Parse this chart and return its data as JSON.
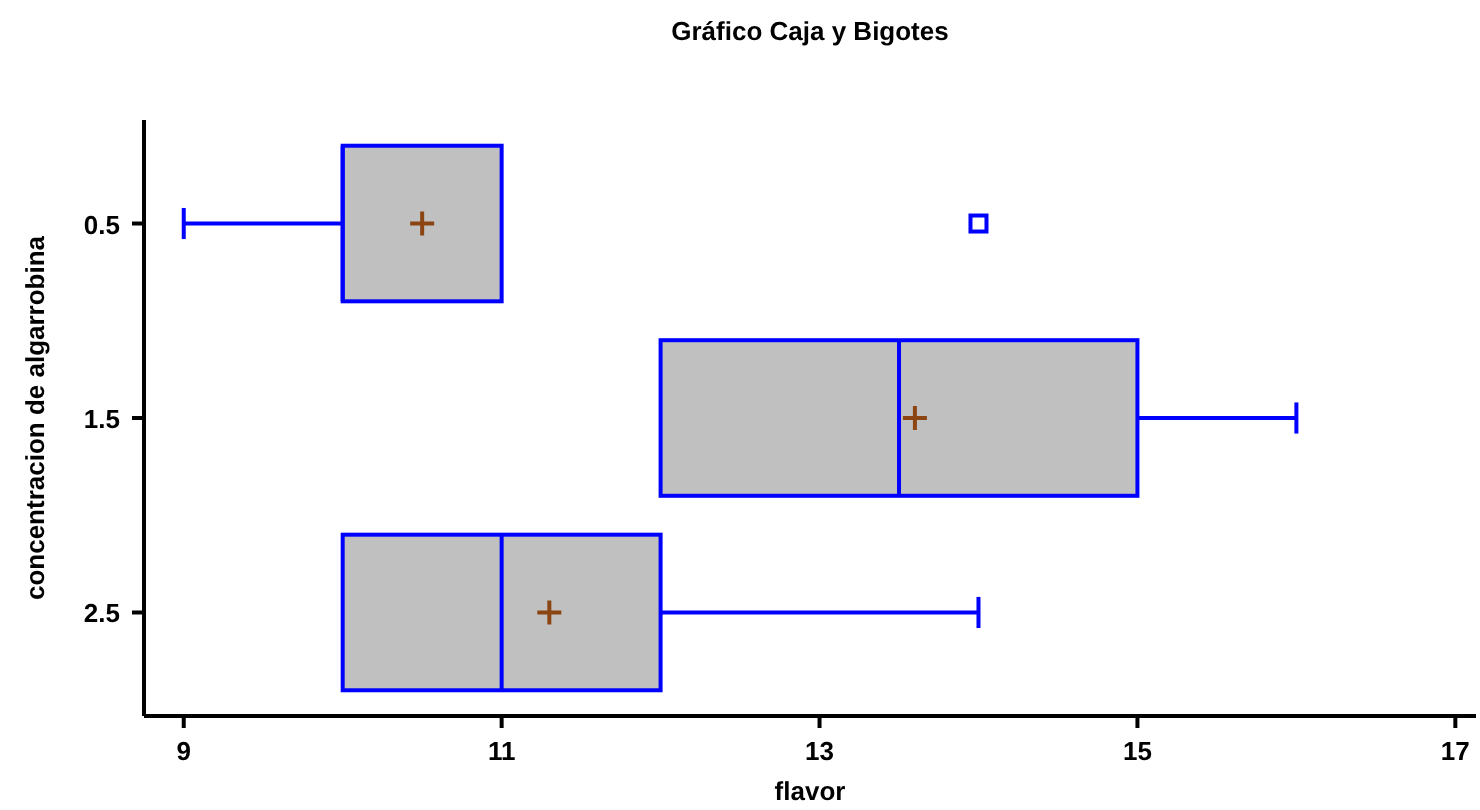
{
  "chart_data": {
    "type": "box",
    "orientation": "horizontal",
    "title": "Gráfico Caja y Bigotes",
    "xlabel": "flavor",
    "ylabel": "concentracion de algarrobina",
    "categories": [
      "0.5",
      "1.5",
      "2.5"
    ],
    "boxes": [
      {
        "low": 9,
        "q1": 10,
        "median": 10,
        "q3": 11,
        "high": 11,
        "mean": 10.5,
        "outliers": [
          14
        ]
      },
      {
        "low": 12,
        "q1": 12,
        "median": 13.5,
        "q3": 15,
        "high": 16,
        "mean": 13.6
      },
      {
        "low": 10,
        "q1": 10,
        "median": 11,
        "q3": 12,
        "high": 14,
        "mean": 11.3
      }
    ],
    "color": "#0000ff",
    "xlim": [
      8.75,
      17.13
    ],
    "xticks": [
      9,
      11,
      13,
      15,
      17
    ]
  }
}
